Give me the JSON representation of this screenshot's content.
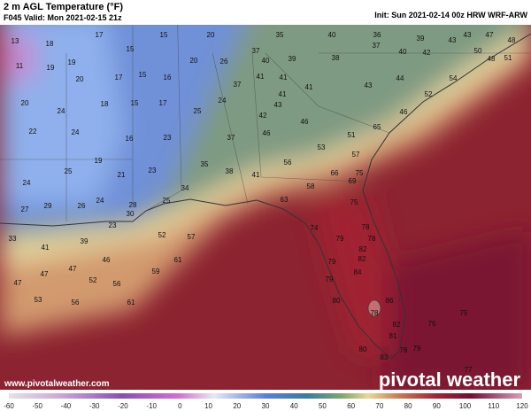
{
  "header": {
    "title": "2 m AGL Temperature (°F)",
    "valid": "F045 Valid: Mon 2021-02-15 21z",
    "init": "Init: Sun 2021-02-14 00z HRW WRF-ARW"
  },
  "footer": {
    "url": "www.pivotalweather.com",
    "brand": "pivotal weather"
  },
  "temperatures": [
    17,
    15,
    20,
    35,
    40,
    36,
    39,
    43,
    43,
    47,
    48,
    13,
    18,
    15,
    20,
    26,
    37,
    40,
    39,
    38,
    37,
    40,
    42,
    50,
    51,
    48,
    11,
    19,
    17,
    15,
    16,
    37,
    41,
    41,
    41,
    43,
    44,
    54,
    19,
    20,
    20,
    24,
    18,
    15,
    17,
    41,
    43,
    52,
    25,
    24,
    42,
    46,
    46,
    22,
    24,
    16,
    23,
    37,
    46,
    51,
    53,
    19,
    21,
    23,
    35,
    38,
    41,
    56,
    57,
    65,
    25,
    24,
    24,
    25,
    34,
    58,
    66,
    69,
    75,
    27,
    29,
    26,
    28,
    30,
    63,
    75,
    23,
    33,
    52,
    57,
    74,
    79,
    78,
    41,
    39,
    78,
    82,
    46,
    61,
    82,
    79,
    47,
    47,
    47,
    52,
    56,
    59,
    79,
    84,
    53,
    56,
    61,
    80,
    86,
    75,
    78,
    76,
    82,
    81,
    80,
    78,
    83,
    79,
    77
  ],
  "colorbar": {
    "ticks": [
      -60,
      -50,
      -40,
      -30,
      -20,
      -10,
      0,
      10,
      20,
      30,
      40,
      50,
      60,
      70,
      80,
      90,
      100,
      110,
      120
    ]
  }
}
